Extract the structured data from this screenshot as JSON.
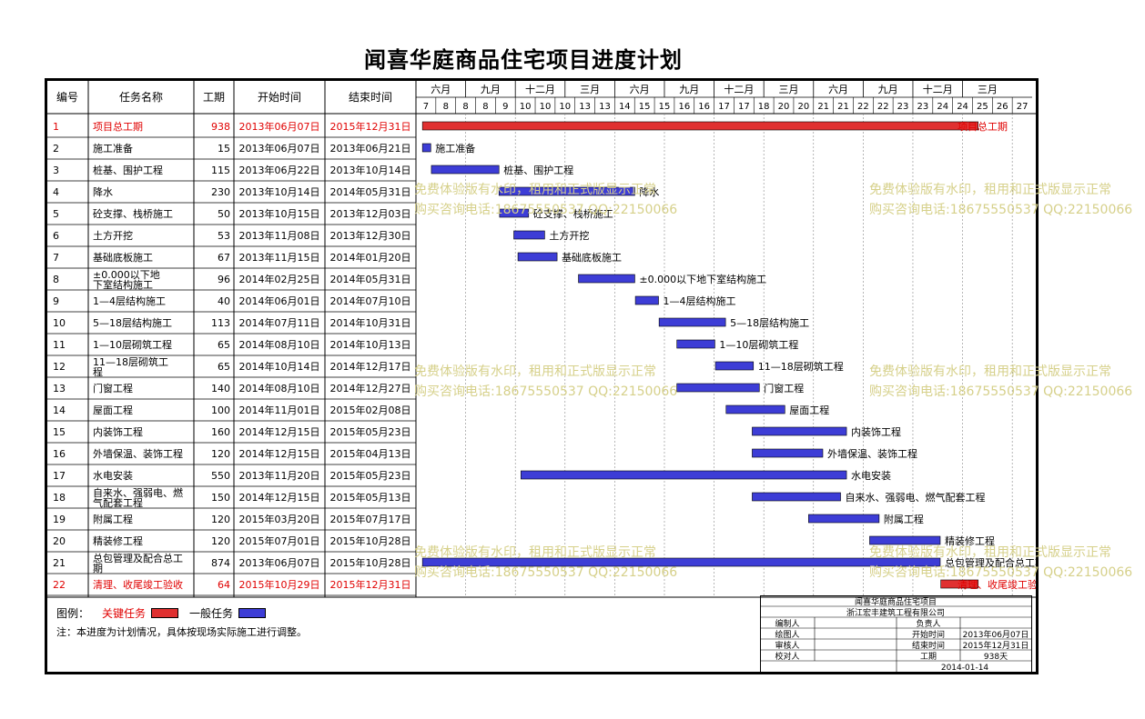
{
  "title": "闻喜华庭商品住宅项目进度计划",
  "columns": {
    "id": "编号",
    "name": "任务名称",
    "duration": "工期",
    "start": "开始时间",
    "end": "结束时间"
  },
  "month_header": [
    "六月",
    "九月",
    "十二月",
    "三月",
    "六月",
    "九月",
    "十二月",
    "三月",
    "六月",
    "九月",
    "十二月",
    "三月"
  ],
  "week_header": [
    "7",
    "8",
    "8",
    "8",
    "9",
    "10",
    "10",
    "10",
    "13",
    "13",
    "14",
    "15",
    "15",
    "16",
    "16",
    "17",
    "17",
    "18",
    "20",
    "20",
    "21",
    "21",
    "22",
    "22",
    "23",
    "23",
    "24",
    "24",
    "25",
    "26",
    "27"
  ],
  "colors": {
    "critical": "#e03030",
    "normal": "#3d3dd6",
    "critical_text": "#e00000",
    "watermark": "#d6d08a"
  },
  "chart_data": {
    "type": "gantt",
    "time_range": [
      "2013-05-27",
      "2016-03-31"
    ],
    "tasks": [
      {
        "id": "1",
        "name": "项目总工期",
        "duration": "938",
        "start": "2013年06月07日",
        "end": "2015年12月31日",
        "s": "2013-06-07",
        "e": "2015-12-31",
        "critical": true
      },
      {
        "id": "2",
        "name": "施工准备",
        "duration": "15",
        "start": "2013年06月07日",
        "end": "2013年06月21日",
        "s": "2013-06-07",
        "e": "2013-06-21",
        "critical": false
      },
      {
        "id": "3",
        "name": "桩基、围护工程",
        "duration": "115",
        "start": "2013年06月22日",
        "end": "2013年10月14日",
        "s": "2013-06-22",
        "e": "2013-10-14",
        "critical": false
      },
      {
        "id": "4",
        "name": "降水",
        "duration": "230",
        "start": "2013年10月14日",
        "end": "2014年05月31日",
        "s": "2013-10-14",
        "e": "2014-05-31",
        "critical": false
      },
      {
        "id": "5",
        "name": "砼支撑、栈桥施工",
        "duration": "50",
        "start": "2013年10月15日",
        "end": "2013年12月03日",
        "s": "2013-10-15",
        "e": "2013-12-03",
        "critical": false
      },
      {
        "id": "6",
        "name": "土方开挖",
        "duration": "53",
        "start": "2013年11月08日",
        "end": "2013年12月30日",
        "s": "2013-11-08",
        "e": "2013-12-30",
        "critical": false
      },
      {
        "id": "7",
        "name": "基础底板施工",
        "duration": "67",
        "start": "2013年11月15日",
        "end": "2014年01月20日",
        "s": "2013-11-15",
        "e": "2014-01-20",
        "critical": false
      },
      {
        "id": "8",
        "name": "±0.000以下地下室结构施工",
        "duration": "96",
        "start": "2014年02月25日",
        "end": "2014年05月31日",
        "s": "2014-02-25",
        "e": "2014-05-31",
        "critical": false
      },
      {
        "id": "9",
        "name": "1—4层结构施工",
        "duration": "40",
        "start": "2014年06月01日",
        "end": "2014年07月10日",
        "s": "2014-06-01",
        "e": "2014-07-10",
        "critical": false
      },
      {
        "id": "10",
        "name": "5—18层结构施工",
        "duration": "113",
        "start": "2014年07月11日",
        "end": "2014年10月31日",
        "s": "2014-07-11",
        "e": "2014-10-31",
        "critical": false
      },
      {
        "id": "11",
        "name": "1—10层砌筑工程",
        "duration": "65",
        "start": "2014年08月10日",
        "end": "2014年10月13日",
        "s": "2014-08-10",
        "e": "2014-10-13",
        "critical": false
      },
      {
        "id": "12",
        "name": "11—18层砌筑工程",
        "duration": "65",
        "start": "2014年10月14日",
        "end": "2014年12月17日",
        "s": "2014-10-14",
        "e": "2014-12-17",
        "critical": false
      },
      {
        "id": "13",
        "name": "门窗工程",
        "duration": "140",
        "start": "2014年08月10日",
        "end": "2014年12月27日",
        "s": "2014-08-10",
        "e": "2014-12-27",
        "critical": false
      },
      {
        "id": "14",
        "name": "屋面工程",
        "duration": "100",
        "start": "2014年11月01日",
        "end": "2015年02月08日",
        "s": "2014-11-01",
        "e": "2015-02-08",
        "critical": false
      },
      {
        "id": "15",
        "name": "内装饰工程",
        "duration": "160",
        "start": "2014年12月15日",
        "end": "2015年05月23日",
        "s": "2014-12-15",
        "e": "2015-05-23",
        "critical": false
      },
      {
        "id": "16",
        "name": "外墙保温、装饰工程",
        "duration": "120",
        "start": "2014年12月15日",
        "end": "2015年04月13日",
        "s": "2014-12-15",
        "e": "2015-04-13",
        "critical": false
      },
      {
        "id": "17",
        "name": "水电安装",
        "duration": "550",
        "start": "2013年11月20日",
        "end": "2015年05月23日",
        "s": "2013-11-20",
        "e": "2015-05-23",
        "critical": false
      },
      {
        "id": "18",
        "name": "自来水、强弱电、燃气配套工程",
        "duration": "150",
        "start": "2014年12月15日",
        "end": "2015年05月13日",
        "s": "2014-12-15",
        "e": "2015-05-13",
        "critical": false
      },
      {
        "id": "19",
        "name": "附属工程",
        "duration": "120",
        "start": "2015年03月20日",
        "end": "2015年07月17日",
        "s": "2015-03-20",
        "e": "2015-07-17",
        "critical": false
      },
      {
        "id": "20",
        "name": "精装修工程",
        "duration": "120",
        "start": "2015年07月01日",
        "end": "2015年10月28日",
        "s": "2015-07-01",
        "e": "2015-10-28",
        "critical": false
      },
      {
        "id": "21",
        "name": "总包管理及配合总工期",
        "duration": "874",
        "start": "2013年06月07日",
        "end": "2015年10月28日",
        "s": "2013-06-07",
        "e": "2015-10-28",
        "critical": false
      },
      {
        "id": "22",
        "name": "清理、收尾竣工验收",
        "duration": "64",
        "start": "2015年10月29日",
        "end": "2015年12月31日",
        "s": "2015-10-29",
        "e": "2015-12-31",
        "critical": true
      }
    ]
  },
  "legend": {
    "label": "图例：",
    "critical": "关键任务",
    "normal": "一般任务"
  },
  "note": "注：本进度为计划情况，具体按现场实际施工进行调整。",
  "watermark": {
    "line1": "免费体验版有水印，租用和正式版显示正常",
    "line2": "购买咨询电话:18675550537 QQ:22150066"
  },
  "signoff": {
    "project": "闻喜华庭商品住宅项目",
    "company": "浙江宏丰建筑工程有限公司",
    "rows": [
      [
        "编制人",
        "",
        "负责人",
        ""
      ],
      [
        "绘图人",
        "",
        "开始时间",
        "2013年06月07日"
      ],
      [
        "审核人",
        "",
        "结束时间",
        "2015年12月31日"
      ],
      [
        "校对人",
        "",
        "工期",
        "938天"
      ]
    ],
    "date": "2014-01-14"
  }
}
